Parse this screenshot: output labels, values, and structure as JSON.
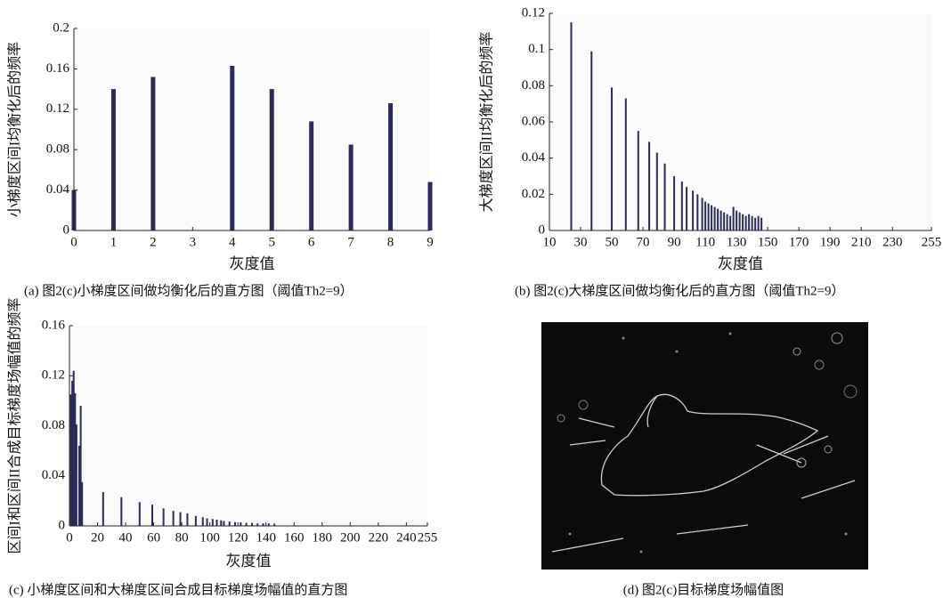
{
  "chart_data": [
    {
      "type": "bar",
      "caption": "(a) 图2(c)小梯度区间做均衡化后的直方图（阈值Th2=9）",
      "xlabel": "灰度值",
      "ylabel": "小梯度区间I均衡化后的频率",
      "color": "#2b2b5a",
      "x": [
        0,
        1,
        2,
        3,
        4,
        5,
        6,
        7,
        8,
        9
      ],
      "values": [
        0.04,
        0.14,
        0.152,
        0,
        0.163,
        0.14,
        0.108,
        0.085,
        0.126,
        0.048
      ],
      "xlim": [
        0,
        9
      ],
      "xticks": [
        0,
        1,
        2,
        3,
        4,
        5,
        6,
        7,
        8,
        9
      ],
      "ylim": [
        0,
        0.2
      ],
      "yticks": [
        0,
        0.04,
        0.08,
        0.12,
        0.16,
        0.2
      ]
    },
    {
      "type": "bar",
      "caption": "(b) 图2(c)大梯度区间做均衡化后的直方图（阈值Th2=9）",
      "xlabel": "灰度值",
      "ylabel": "大梯度区间II均衡化后的频率",
      "color": "#2b2b5a",
      "x": [
        24,
        37,
        50,
        59,
        67,
        74,
        79,
        84,
        90,
        95,
        98,
        102,
        105,
        108,
        110,
        112,
        114,
        116,
        118,
        120,
        122,
        124,
        126,
        128,
        130,
        132,
        134,
        136,
        138,
        140,
        142,
        144,
        146
      ],
      "values": [
        0.115,
        0.099,
        0.079,
        0.073,
        0.055,
        0.049,
        0.043,
        0.037,
        0.03,
        0.027,
        0.024,
        0.022,
        0.02,
        0.018,
        0.016,
        0.015,
        0.014,
        0.013,
        0.012,
        0.011,
        0.01,
        0.009,
        0.008,
        0.013,
        0.011,
        0.01,
        0.009,
        0.008,
        0.009,
        0.008,
        0.007,
        0.008,
        0.007
      ],
      "xlim": [
        10,
        255
      ],
      "xticks": [
        10,
        30,
        50,
        70,
        90,
        110,
        130,
        150,
        170,
        190,
        210,
        230,
        255
      ],
      "ylim": [
        0,
        0.12
      ],
      "yticks": [
        0,
        0.02,
        0.04,
        0.06,
        0.08,
        0.1,
        0.12
      ]
    },
    {
      "type": "bar",
      "caption": "(c) 小梯度区间和大梯度区间合成目标梯度场幅值的直方图",
      "xlabel": "灰度值",
      "ylabel": "区间I和区间II合成目标梯度场幅值的频率",
      "color": "#2b2b5a",
      "x": [
        1,
        2,
        3,
        4,
        5,
        7,
        8,
        9,
        24,
        37,
        50,
        59,
        67,
        74,
        79,
        84,
        90,
        95,
        98,
        102,
        105,
        108,
        110,
        114,
        118,
        122,
        126,
        130,
        134,
        138,
        142,
        146
      ],
      "values": [
        0.105,
        0.116,
        0.124,
        0.106,
        0.081,
        0.064,
        0.096,
        0.035,
        0.027,
        0.023,
        0.019,
        0.017,
        0.014,
        0.012,
        0.011,
        0.01,
        0.008,
        0.007,
        0.006,
        0.0055,
        0.005,
        0.0045,
        0.004,
        0.0035,
        0.003,
        0.0028,
        0.0025,
        0.0025,
        0.002,
        0.002,
        0.002,
        0.0018
      ],
      "xlim": [
        0,
        255
      ],
      "xticks": [
        0,
        20,
        40,
        60,
        80,
        100,
        120,
        140,
        160,
        180,
        200,
        220,
        240,
        255
      ],
      "ylim": [
        0,
        0.16
      ],
      "yticks": [
        0,
        0.04,
        0.08,
        0.12,
        0.16
      ]
    }
  ],
  "image": {
    "caption": "(d) 图2(c)目标梯度场幅值图"
  }
}
